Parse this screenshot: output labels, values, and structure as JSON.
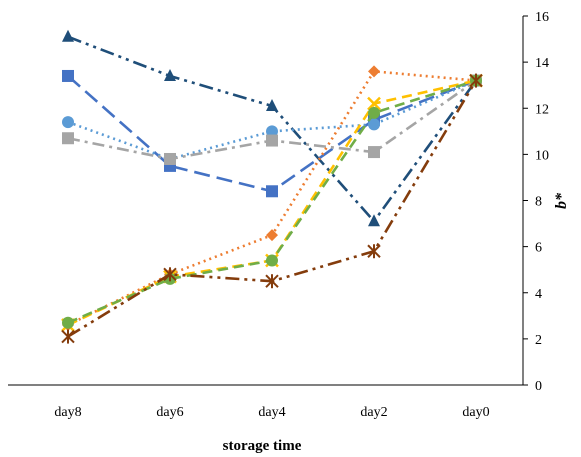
{
  "chart_data": {
    "type": "line",
    "title": "",
    "xlabel": "storage time",
    "ylabel": "b*",
    "categories": [
      "day8",
      "day6",
      "day4",
      "day2",
      "day0"
    ],
    "ylim": [
      0,
      16
    ],
    "yticks": [
      0,
      2,
      4,
      6,
      8,
      10,
      12,
      14,
      16
    ],
    "y_axis_position": "right",
    "grid": false,
    "legend": "none",
    "series": [
      {
        "values": [
          15.1,
          13.4,
          12.1,
          7.1,
          13.2
        ],
        "color": "#1F4E79",
        "dash": "dash-dot-dot",
        "marker": "triangle"
      },
      {
        "values": [
          13.4,
          9.5,
          8.4,
          11.5,
          13.2
        ],
        "color": "#4472C4",
        "dash": "long-dash",
        "marker": "square"
      },
      {
        "values": [
          11.4,
          9.8,
          11.0,
          11.3,
          13.2
        ],
        "color": "#5B9BD5",
        "dash": "dot",
        "marker": "circle"
      },
      {
        "values": [
          10.7,
          9.8,
          10.6,
          10.1,
          13.2
        ],
        "color": "#A5A5A5",
        "dash": "dash-dot",
        "marker": "square"
      },
      {
        "values": [
          2.6,
          4.8,
          6.5,
          13.6,
          13.2
        ],
        "color": "#ED7D31",
        "dash": "dot",
        "marker": "diamond"
      },
      {
        "values": [
          2.6,
          4.7,
          5.4,
          12.2,
          13.2
        ],
        "color": "#FFC000",
        "dash": "dash",
        "marker": "x"
      },
      {
        "values": [
          2.7,
          4.6,
          5.4,
          11.8,
          13.2
        ],
        "color": "#70AD47",
        "dash": "dash",
        "marker": "circle"
      },
      {
        "values": [
          2.1,
          4.8,
          4.5,
          5.8,
          13.2
        ],
        "color": "#843C0C",
        "dash": "dash-dot-dot",
        "marker": "star"
      }
    ]
  }
}
